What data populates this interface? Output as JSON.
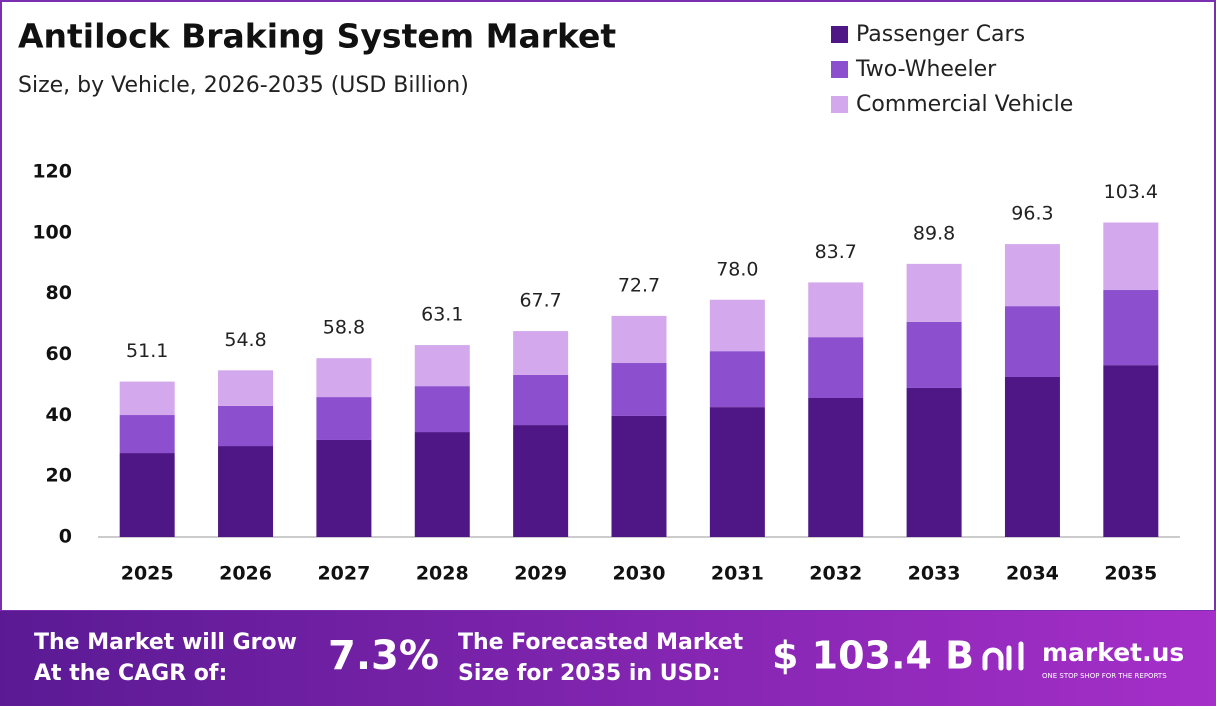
{
  "chart_data": {
    "type": "stacked_bar",
    "title": "Antilock Braking System Market",
    "subtitle": "Size, by Vehicle, 2026-2035 (USD Billion)",
    "categories": [
      "2025",
      "2026",
      "2027",
      "2028",
      "2029",
      "2030",
      "2031",
      "2032",
      "2033",
      "2034",
      "2035"
    ],
    "series": [
      {
        "name": "Passenger Cars",
        "color": "#4f1785",
        "values": [
          27.6,
          29.9,
          31.9,
          34.5,
          36.8,
          39.8,
          42.7,
          45.7,
          49.0,
          52.6,
          56.5
        ]
      },
      {
        "name": "Two-Wheeler",
        "color": "#8c4fce",
        "values": [
          12.5,
          13.2,
          14.1,
          15.1,
          16.5,
          17.4,
          18.4,
          20.0,
          21.7,
          23.3,
          24.7
        ]
      },
      {
        "name": "Commercial Vehicle",
        "color": "#d4a8ec",
        "values": [
          11.0,
          11.7,
          12.8,
          13.5,
          14.4,
          15.5,
          16.9,
          18.0,
          19.1,
          20.4,
          22.2
        ]
      }
    ],
    "totals": [
      51.1,
      54.8,
      58.8,
      63.1,
      67.7,
      72.7,
      78.0,
      83.7,
      89.8,
      96.3,
      103.4
    ],
    "total_labels": [
      "51.1",
      "54.8",
      "58.8",
      "63.1",
      "67.7",
      "72.7",
      "78.0",
      "83.7",
      "89.8",
      "96.3",
      "103.4"
    ],
    "ylim": [
      0,
      120
    ],
    "yticks": [
      0,
      20,
      40,
      60,
      80,
      100,
      120
    ],
    "grid": false,
    "legend": "top-right"
  },
  "footer": {
    "cagr_text": [
      "The Market will Grow",
      "At the CAGR of:"
    ],
    "cagr_value": "7.3%",
    "forecast_text": [
      "The Forecasted Market",
      "Size for 2035 in USD:"
    ],
    "forecast_value": "$ 103.4 B",
    "brand": "market.us",
    "tagline": "ONE STOP SHOP FOR THE REPORTS"
  }
}
